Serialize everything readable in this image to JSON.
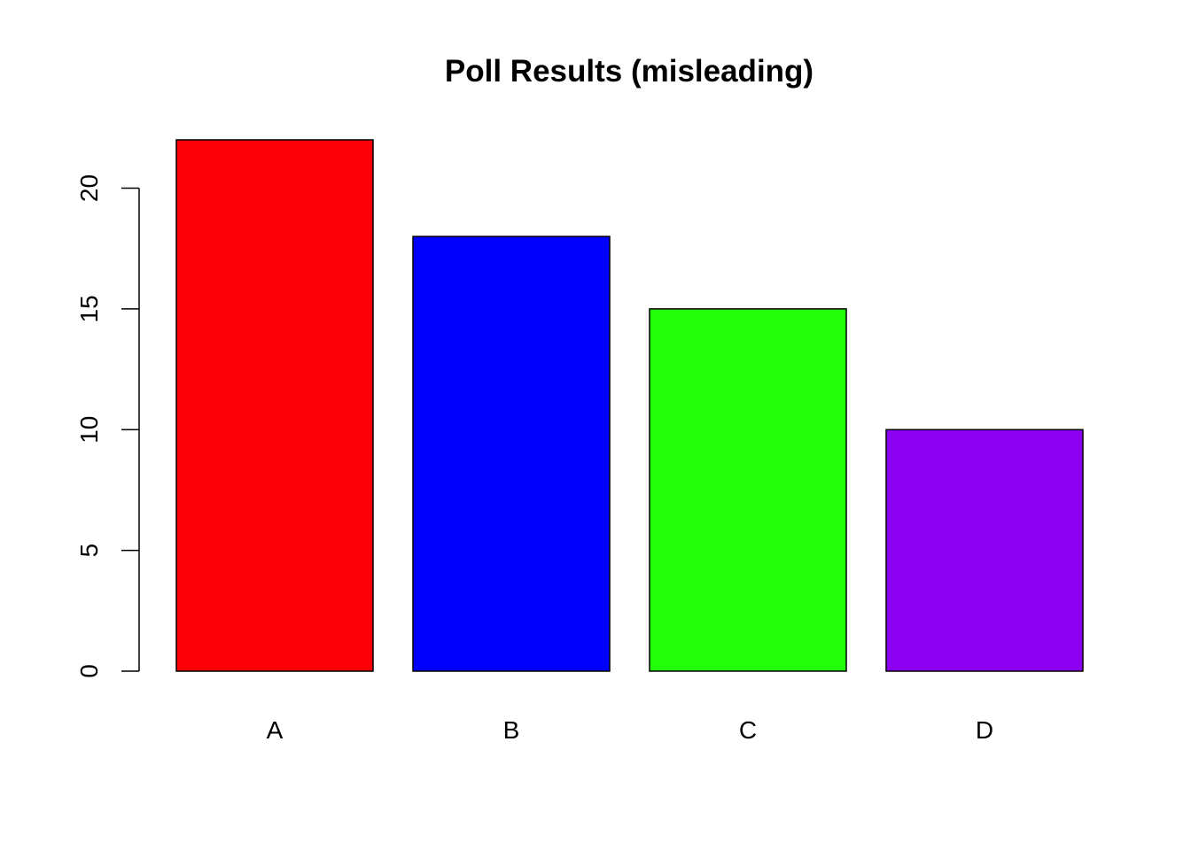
{
  "chart_data": {
    "type": "bar",
    "title": "Poll Results (misleading)",
    "xlabel": "",
    "ylabel": "",
    "categories": [
      "A",
      "B",
      "C",
      "D"
    ],
    "values": [
      22,
      18,
      15,
      10
    ],
    "colors": [
      "#fb0007",
      "#0000ff",
      "#22ff09",
      "#8b00f0"
    ],
    "ylim": [
      0,
      22
    ],
    "yticks": [
      0,
      5,
      10,
      15,
      20
    ],
    "grid": false,
    "legend": "none"
  }
}
